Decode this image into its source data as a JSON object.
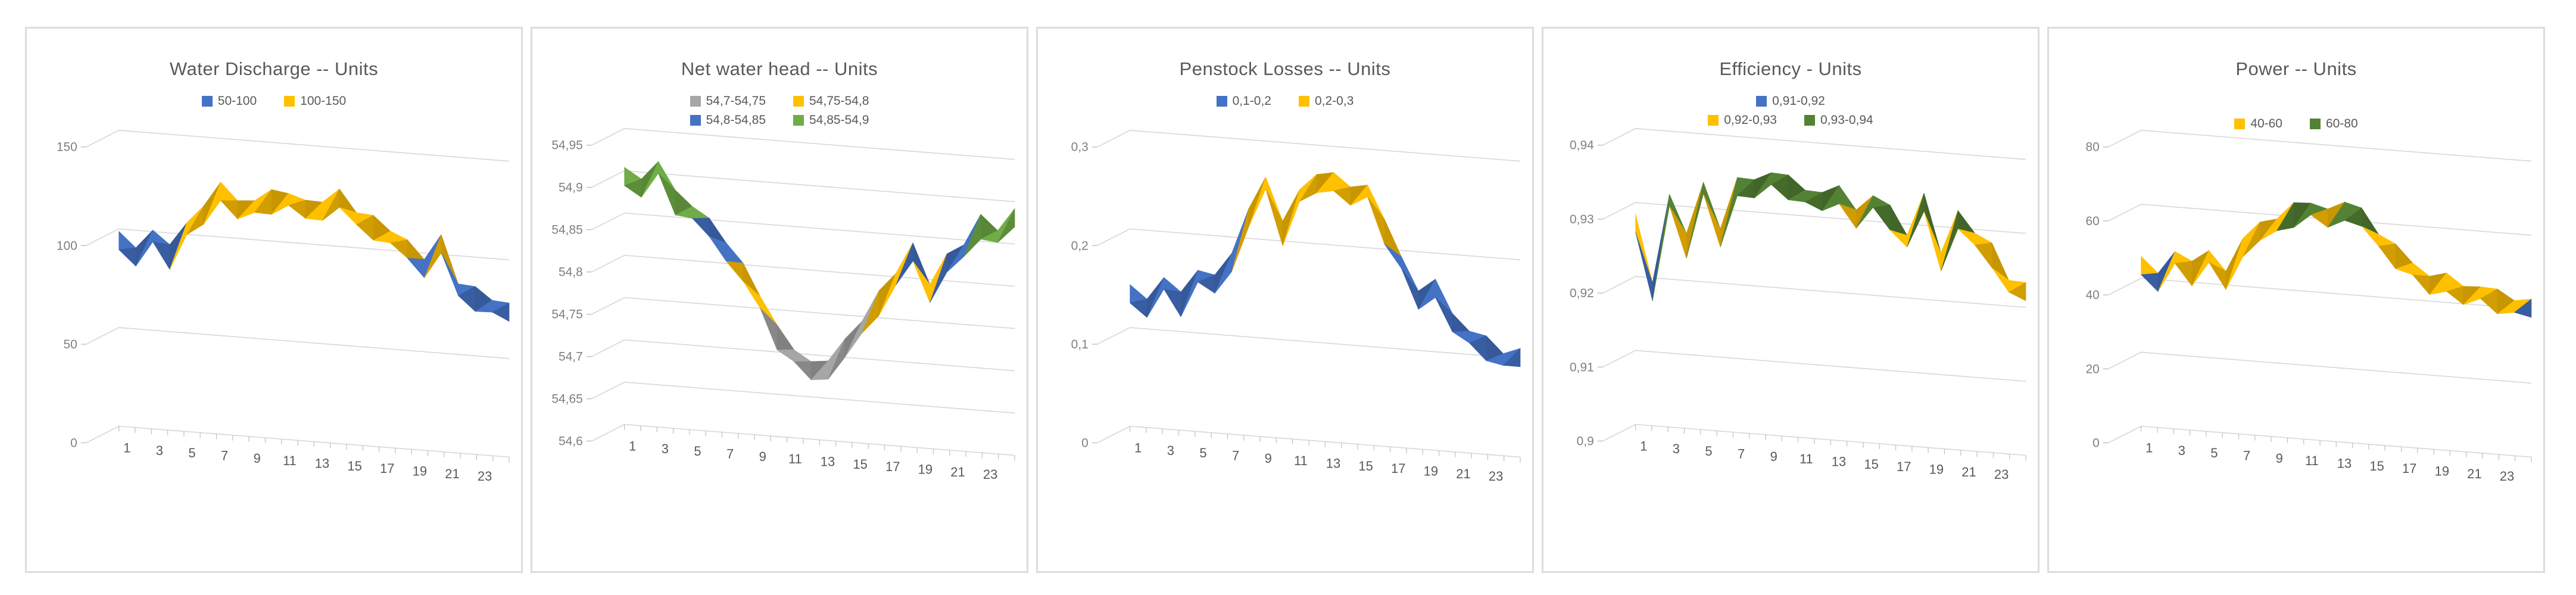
{
  "style": {
    "background": "#ffffff",
    "panel_border": "#dcdcdc",
    "title_color": "#595959",
    "legend_text_color": "#595959",
    "y_axis_label_color": "#808080",
    "x_axis_label_color": "#595959",
    "grid_color": "#d9d9d9",
    "tick_color": "#bfbfbf"
  },
  "chart_data": [
    {
      "type": "surface3d",
      "title": "Water Discharge -- Units",
      "legend_rows": [
        [
          {
            "label": "50-100",
            "color": "#4472C4"
          },
          {
            "label": "100-150",
            "color": "#FFC000"
          }
        ]
      ],
      "bands": [
        {
          "min": 50,
          "max": 100,
          "color": "#4472C4"
        },
        {
          "min": 100,
          "max": 150,
          "color": "#FFC000"
        }
      ],
      "ylim": [
        0,
        150
      ],
      "y_ticks": [
        {
          "label": "150",
          "value": 150
        },
        {
          "label": "100",
          "value": 100
        },
        {
          "label": "50",
          "value": 50
        },
        {
          "label": "0",
          "value": 0
        }
      ],
      "x_tick_labels": [
        "1",
        "3",
        "5",
        "7",
        "9",
        "11",
        "13",
        "15",
        "17",
        "19",
        "21",
        "23"
      ],
      "x_categories_count": 24,
      "values": [
        97,
        86,
        99,
        89,
        104,
        110,
        126,
        114,
        118,
        121,
        123,
        117,
        120,
        124,
        116,
        112,
        108,
        101,
        95,
        105,
        84,
        80,
        77,
        73
      ]
    },
    {
      "type": "surface3d",
      "title": "Net water head -- Units",
      "legend_rows": [
        [
          {
            "label": "54,7-54,75",
            "color": "#A6A6A6"
          },
          {
            "label": "54,75-54,8",
            "color": "#FFC000"
          }
        ],
        [
          {
            "label": "54,8-54,85",
            "color": "#4472C4"
          },
          {
            "label": "54,85-54,9",
            "color": "#70AD47"
          }
        ]
      ],
      "bands": [
        {
          "min": 54.7,
          "max": 54.75,
          "color": "#A6A6A6"
        },
        {
          "min": 54.75,
          "max": 54.8,
          "color": "#FFC000"
        },
        {
          "min": 54.8,
          "max": 54.85,
          "color": "#4472C4"
        },
        {
          "min": 54.85,
          "max": 54.9,
          "color": "#70AD47"
        }
      ],
      "ylim": [
        54.6,
        54.95
      ],
      "y_ticks": [
        {
          "label": "54,95",
          "value": 54.95
        },
        {
          "label": "54,9",
          "value": 54.9
        },
        {
          "label": "54,85",
          "value": 54.85
        },
        {
          "label": "54,8",
          "value": 54.8
        },
        {
          "label": "54,75",
          "value": 54.75
        },
        {
          "label": "54,7",
          "value": 54.7
        },
        {
          "label": "54,65",
          "value": 54.65
        },
        {
          "label": "54,6",
          "value": 54.6
        }
      ],
      "x_tick_labels": [
        "1",
        "3",
        "5",
        "7",
        "9",
        "11",
        "13",
        "15",
        "17",
        "19",
        "21",
        "23"
      ],
      "x_categories_count": 24,
      "values": [
        54.9,
        54.88,
        54.91,
        54.87,
        54.86,
        54.84,
        54.82,
        54.79,
        54.76,
        54.72,
        54.7,
        54.68,
        54.69,
        54.71,
        54.74,
        54.77,
        54.8,
        54.83,
        54.79,
        54.82,
        54.84,
        54.87,
        54.86,
        54.88
      ]
    },
    {
      "type": "surface3d",
      "title": "Penstock Losses -- Units",
      "legend_rows": [
        [
          {
            "label": "0,1-0,2",
            "color": "#4472C4"
          },
          {
            "label": "0,2-0,3",
            "color": "#FFC000"
          }
        ]
      ],
      "bands": [
        {
          "min": 0.1,
          "max": 0.2,
          "color": "#4472C4"
        },
        {
          "min": 0.2,
          "max": 0.3,
          "color": "#FFC000"
        }
      ],
      "ylim": [
        0,
        0.3
      ],
      "y_ticks": [
        {
          "label": "0,3",
          "value": 0.3
        },
        {
          "label": "0,2",
          "value": 0.2
        },
        {
          "label": "0,1",
          "value": 0.1
        },
        {
          "label": "0",
          "value": 0
        }
      ],
      "x_tick_labels": [
        "1",
        "3",
        "5",
        "7",
        "9",
        "11",
        "13",
        "15",
        "17",
        "19",
        "21",
        "23"
      ],
      "x_categories_count": 24,
      "values": [
        0.14,
        0.12,
        0.15,
        0.13,
        0.16,
        0.15,
        0.18,
        0.22,
        0.26,
        0.21,
        0.25,
        0.26,
        0.27,
        0.25,
        0.26,
        0.22,
        0.19,
        0.15,
        0.17,
        0.13,
        0.12,
        0.11,
        0.1,
        0.1
      ]
    },
    {
      "type": "surface3d",
      "title": "Efficiency - Units",
      "legend_rows": [
        [
          {
            "label": "0,91-0,92",
            "color": "#4472C4"
          }
        ],
        [
          {
            "label": "0,92-0,93",
            "color": "#FFC000"
          },
          {
            "label": "0,93-0,94",
            "color": "#548235"
          }
        ]
      ],
      "bands": [
        {
          "min": 0.91,
          "max": 0.92,
          "color": "#4472C4"
        },
        {
          "min": 0.92,
          "max": 0.93,
          "color": "#FFC000"
        },
        {
          "min": 0.93,
          "max": 0.94,
          "color": "#548235"
        }
      ],
      "ylim": [
        0.9,
        0.94
      ],
      "y_ticks": [
        {
          "label": "0,94",
          "value": 0.94
        },
        {
          "label": "0,93",
          "value": 0.93
        },
        {
          "label": "0,92",
          "value": 0.92
        },
        {
          "label": "0,91",
          "value": 0.91
        },
        {
          "label": "0,9",
          "value": 0.9
        }
      ],
      "x_tick_labels": [
        "1",
        "3",
        "5",
        "7",
        "9",
        "11",
        "13",
        "15",
        "17",
        "19",
        "21",
        "23"
      ],
      "x_categories_count": 24,
      "values": [
        0.928,
        0.918,
        0.931,
        0.925,
        0.933,
        0.926,
        0.934,
        0.933,
        0.935,
        0.934,
        0.933,
        0.932,
        0.934,
        0.93,
        0.933,
        0.931,
        0.928,
        0.933,
        0.926,
        0.931,
        0.929,
        0.927,
        0.923,
        0.922
      ]
    },
    {
      "type": "surface3d",
      "title": "Power -- Units",
      "legend_rows": [
        [
          {
            "label": "40-60",
            "color": "#FFC000"
          },
          {
            "label": "60-80",
            "color": "#548235"
          }
        ]
      ],
      "bands": [
        {
          "min": 20,
          "max": 40,
          "color": "#4472C4"
        },
        {
          "min": 40,
          "max": 60,
          "color": "#FFC000"
        },
        {
          "min": 60,
          "max": 80,
          "color": "#548235"
        }
      ],
      "ylim": [
        0,
        80
      ],
      "y_ticks": [
        {
          "label": "80",
          "value": 80
        },
        {
          "label": "60",
          "value": 60
        },
        {
          "label": "40",
          "value": 40
        },
        {
          "label": "20",
          "value": 20
        },
        {
          "label": "0",
          "value": 0
        }
      ],
      "x_tick_labels": [
        "1",
        "3",
        "5",
        "7",
        "9",
        "11",
        "13",
        "15",
        "17",
        "19",
        "21",
        "23"
      ],
      "x_categories_count": 24,
      "values": [
        45,
        39,
        47,
        43,
        48,
        41,
        52,
        55,
        58,
        61,
        63,
        60,
        64,
        61,
        56,
        52,
        49,
        44,
        47,
        42,
        44,
        42,
        41,
        40
      ]
    }
  ]
}
